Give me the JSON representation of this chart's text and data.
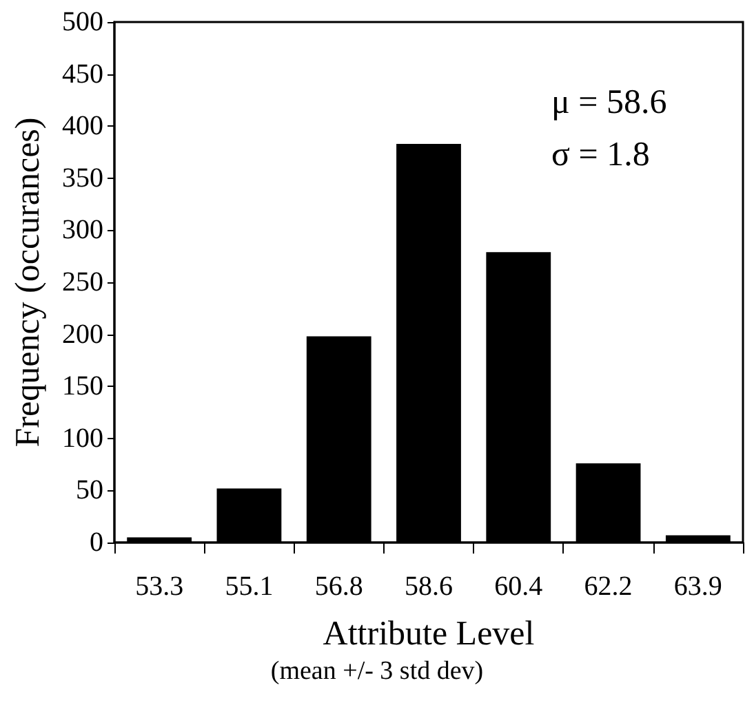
{
  "chart_data": {
    "type": "bar",
    "categories": [
      "53.3",
      "55.1",
      "56.8",
      "58.6",
      "60.4",
      "62.2",
      "63.9"
    ],
    "values": [
      5,
      52,
      198,
      383,
      279,
      76,
      7
    ],
    "color": "#000000",
    "xlabel": "Attribute Level",
    "ylabel": "Frequency (occurances)",
    "ylim": [
      0,
      500
    ],
    "yticks": [
      0,
      50,
      100,
      150,
      200,
      250,
      300,
      350,
      400,
      450,
      500
    ],
    "grid": false,
    "annotations": [
      "μ = 58.6",
      "σ = 1.8",
      "(mean +/- 3 std dev)"
    ]
  }
}
